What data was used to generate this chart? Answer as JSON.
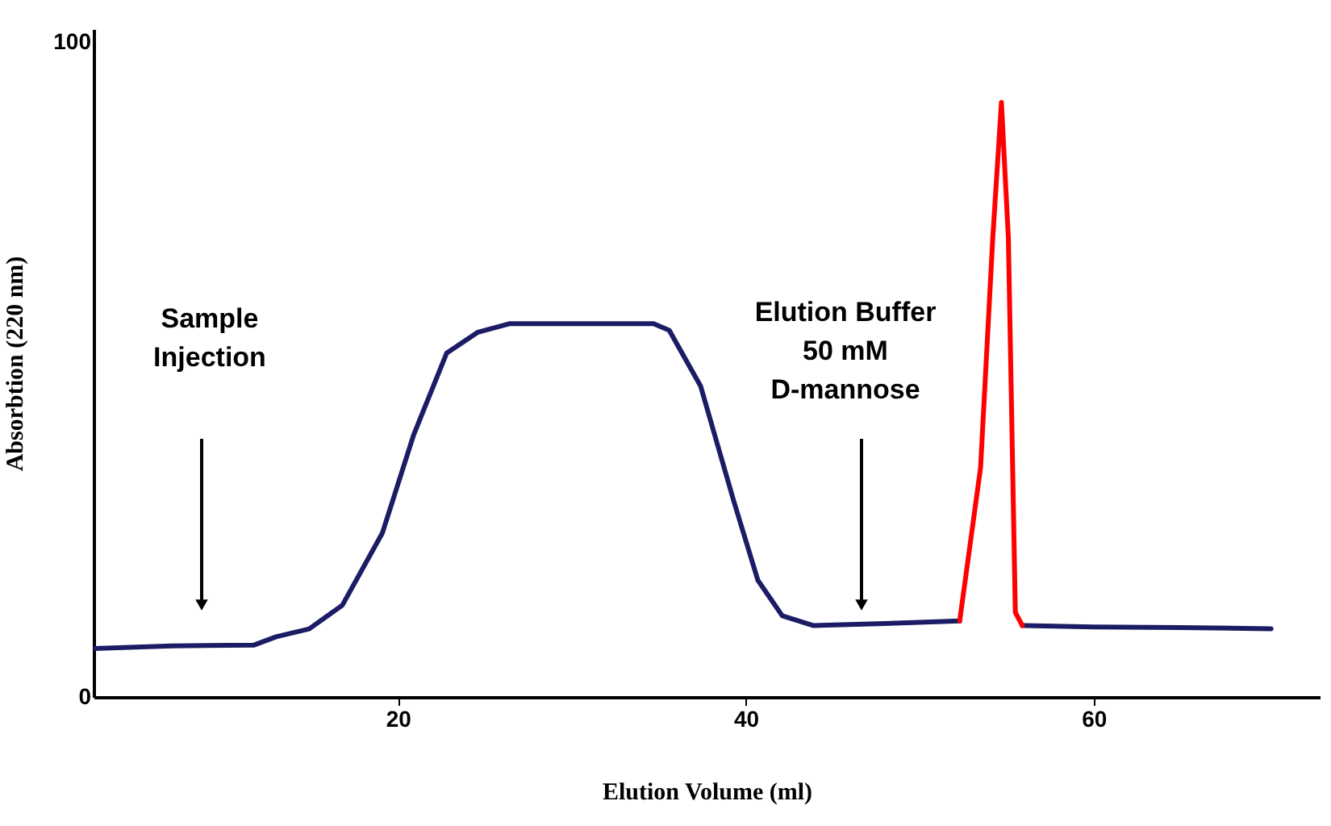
{
  "chart_data": {
    "type": "line",
    "xlabel": "Elution   Volume  (ml)",
    "ylabel": "Absorbtion  (220  nm)",
    "xlim": [
      2.5,
      73
    ],
    "ylim": [
      0,
      102
    ],
    "xticks": [
      20,
      40,
      60
    ],
    "yticks": [
      0,
      100
    ],
    "grid": false,
    "marker": "none",
    "line_style": "solid",
    "series": [
      {
        "color": "#1c1c66",
        "x": [
          2.5,
          7,
          11.7,
          13,
          14.9,
          16.8,
          19.1,
          20.9,
          22.8,
          24.6,
          26.4,
          30,
          34.7,
          35.6,
          37.4,
          39.3,
          40.7,
          42.1,
          43.9,
          48,
          52.3,
          54,
          55.9,
          60,
          65,
          70.2
        ],
        "values": [
          7.4,
          7.8,
          7.9,
          9.2,
          10.4,
          14,
          25,
          40,
          52.5,
          55.7,
          57,
          57,
          57,
          56,
          47.5,
          30,
          17.8,
          12.4,
          10.9,
          11.2,
          11.6,
          null,
          10.9,
          10.7,
          10.6,
          10.4
        ]
      },
      {
        "color": "#ff0000",
        "x": [
          52.3,
          53.5,
          54.2,
          54.7,
          55.1,
          55.5,
          55.9
        ],
        "values": [
          11.6,
          35,
          70,
          90.8,
          70,
          12.9,
          10.9
        ]
      }
    ],
    "annotations": [
      "Sample\nInjection",
      "Elution Buffer\n50 mM\nD-mannose"
    ]
  }
}
